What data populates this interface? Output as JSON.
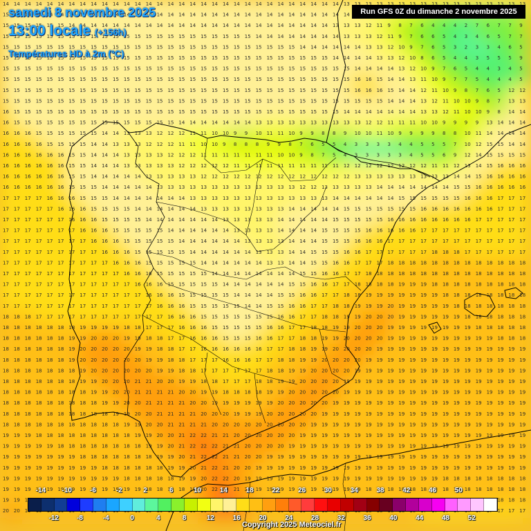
{
  "header": {
    "date": "samedi 8 novembre 2025",
    "time": "13:00 locale",
    "lead": "(+156h)",
    "parameter": "Températures HD à 2m (°C)",
    "run": "Run GFS 0Z du dimanche 2 novembre 2025"
  },
  "footer": {
    "copyright": "Copyright 2025 Meteociel.fr"
  },
  "legend": {
    "colors": [
      "#0a1e4a",
      "#0d2f6e",
      "#113d94",
      "#0000dc",
      "#1e3cff",
      "#1f7ef0",
      "#1aa6ff",
      "#3ed0ff",
      "#60eddc",
      "#5cf79c",
      "#52f060",
      "#8af02c",
      "#c8f000",
      "#f2ff12",
      "#fff56a",
      "#fff096",
      "#ffdd18",
      "#ffbf14",
      "#ff9f10",
      "#ff7f0a",
      "#ff5a2a",
      "#ff3c3c",
      "#ff1010",
      "#e80000",
      "#c00000",
      "#a20014",
      "#860000",
      "#680020",
      "#8a006a",
      "#b2009c",
      "#d800cc",
      "#f600f2",
      "#ff60ff",
      "#ff9aff",
      "#ffc6ff",
      "#ffffff"
    ],
    "top_labels": [
      "-14",
      "-10",
      "-6",
      "-2",
      "2",
      "6",
      "10",
      "14",
      "18",
      "22",
      "26",
      "30",
      "34",
      "38",
      "42",
      "46",
      "50"
    ],
    "bottom_labels": [
      "-12",
      "-8",
      "-4",
      "0",
      "4",
      "8",
      "12",
      "16",
      "20",
      "24",
      "28",
      "32",
      "36",
      "40",
      "44",
      "48",
      "52"
    ]
  },
  "map": {
    "region": "Iberian Peninsula",
    "grid_values": [
      "14 14 14 14 14 14 14 14 14 14 14 14 14 14 14 14 14 14 14 14 14 14 14 14 14 14 14 14 14 14 14 13 13 13 13 13 13 13 13 13 13 13 13 13 13 13 13 13",
      "15 15 14 14 14 14 14 14 14 14 14 14 14 14 14 14 14 14 14 14 14 14 14 14 14 14 14 14 14 14 14 14 14 14 13 12 11 10 9 7 6 5 4 4 4 4 5 6",
      "15 15 15 15 15 15 14 14 14 14 14 14 14 14 14 14 14 14 14 14 14 14 14 14 14 14 14 14 14 14 13 13 13 12 11 9 8 7 6 4 4 4 2 7 6 7 7 9",
      "15 15 15 15 15 15 15 15 15 15 15 15 15 15 15 15 15 15 15 15 15 15 15 14 14 14 14 14 14 14 14 13 13 13 12 11 9 7 6 6 5 4 3 4 6 5 7 7",
      "15 15 15 15 15 15 15 15 15 15 15 15 15 15 15 15 15 15 15 15 15 15 15 15 15 15 15 14 14 14 14 14 14 13 13 12 10 9 7 6 5 3 2 3 3 4 6 5",
      "15 15 15 15 15 15 15 15 15 15 15 15 15 15 15 15 15 15 15 15 15 15 15 15 15 15 15 15 15 15 14 14 14 14 13 13 12 10 8 6 5 4 4 3 5 5 5 9",
      "15 15 15 15 15 15 15 15 15 15 15 15 15 15 15 15 15 15 15 15 15 15 15 15 15 15 15 15 15 15 15 15 14 14 14 14 13 12 10 9 7 6 5 4 4 3 4 5",
      "15 15 15 15 15 15 15 15 15 15 15 15 15 15 15 15 15 15 15 15 15 15 15 15 15 15 15 15 15 15 15 15 16 16 15 14 14 13 11 10 9 7 7 5 4 4 4 5",
      "15 15 15 15 15 15 15 15 15 15 15 15 15 15 15 15 15 15 15 15 15 15 15 15 15 15 15 15 15 15 15 15 16 16 16 15 14 14 12 11 10 9 8 7 6 5 12 12",
      "15 15 15 15 15 15 15 15 15 15 15 15 15 15 15 15 15 15 15 15 15 15 15 15 15 15 15 15 15 15 15 15 15 15 15 14 14 14 13 12 11 10 10 9 8 7 13 13",
      "16 15 15 15 15 15 15 15 15 15 15 15 15 15 15 15 15 15 15 15 15 15 15 15 15 15 15 15 15 15 15 14 14 14 14 14 14 14 13 13 12 11 10 10 9 8 14 14",
      "16 15 15 15 15 15 15 15 15 15 15 15 15 15 15 15 14 14 14 14 14 14 14 13 13 13 13 13 13 13 13 13 13 12 12 11 11 11 10 10 9 9 9 9 13 14 14 14",
      "16 16 16 15 15 15 15 15 15 14 14 13 13 13 12 12 12 11 11 10 10 9 9 10 11 11 10 9 9 8 8 9 10 10 11 10 9 9 9 9 8 8 10 11 14 14 14 14",
      "16 16 16 16 15 15 15 15 14 14 13 13 13 12 12 12 11 11 10 10 9 8 8 8 9 9 8 7 6 5 5 4 3 3 3 3 4 4 5 5 5 7 10 12 15 15 14 14",
      "16 16 16 16 16 16 15 15 14 14 14 13 13 13 13 12 12 12 11 11 11 11 11 11 11 10 10 9 8 7 5 4 3 3 3 3 3 4 5 5 6 9 12 14 15 15 15 15",
      "16 16 16 16 16 16 15 15 14 14 14 13 13 13 13 13 12 12 12 12 12 11 11 11 11 11 11 11 11 11 11 12 12 12 12 12 12 12 12 11 11 12 13 14 15 16 16 16",
      "16 16 16 16 16 16 15 15 14 14 14 14 14 13 13 13 13 13 12 12 12 12 12 12 12 12 12 12 12 12 12 12 13 13 13 13 13 13 13 13 13 14 14 15 16 16 16 16",
      "16 16 16 16 16 16 15 15 15 14 14 14 14 14 13 13 13 13 13 13 13 13 13 13 13 13 13 12 12 13 13 13 13 13 14 14 14 14 14 14 14 15 15 16 16 16 16 16",
      "17 17 17 17 16 16 16 15 15 15 14 14 14 14 14 14 14 13 13 13 13 13 13 13 13 13 13 13 13 13 14 14 14 14 14 14 15 15 15 15 15 15 16 16 16 17 17 17",
      "17 17 17 17 17 16 16 16 15 15 15 15 14 14 14 14 14 14 13 13 13 13 13 13 13 13 14 14 14 14 14 15 15 15 15 15 15 15 16 16 16 16 16 16 16 17 17 17",
      "17 17 17 17 17 17 16 16 16 15 15 15 15 14 14 14 14 14 14 14 13 13 13 13 13 14 14 14 14 14 15 15 15 15 15 16 16 16 16 16 16 16 16 17 17 17 17 17",
      "17 17 17 17 17 17 17 16 16 16 15 15 15 15 15 14 14 14 14 14 14 13 13 13 13 14 14 14 14 15 15 15 15 16 16 16 16 16 17 17 17 17 17 17 17 17 17 17",
      "17 17 17 17 17 17 17 17 16 16 16 15 15 15 15 15 14 14 14 14 14 14 13 13 13 13 14 14 14 15 15 15 16 16 16 17 17 17 17 17 17 17 17 17 17 17 17 17",
      "17 17 17 17 17 17 17 17 17 16 16 16 15 15 15 15 15 14 14 14 14 14 14 13 13 13 14 14 15 15 15 16 16 17 17 17 17 17 17 18 18 18 17 17 17 17 17 17",
      "17 17 17 17 17 17 17 17 17 17 16 16 16 15 15 15 15 15 14 14 14 14 14 14 13 13 14 14 15 15 16 16 17 17 17 18 18 18 18 18 18 18 18 18 18 18 18 18",
      "17 17 17 17 17 17 17 17 17 17 17 16 16 16 15 15 15 15 15 14 14 14 14 14 14 14 14 15 15 16 16 17 17 18 18 18 18 18 18 18 18 18 18 18 18 18 18 18",
      "17 17 17 17 17 17 17 17 17 17 17 17 16 16 16 15 15 15 15 15 14 14 14 14 14 14 15 15 16 16 17 17 18 18 18 18 19 19 19 18 18 18 18 18 18 18 18 18",
      "17 17 17 17 17 17 17 17 17 17 17 17 17 16 16 16 15 15 15 15 15 14 14 14 14 15 15 16 16 17 17 18 18 19 19 19 19 19 19 19 18 18 18 18 18 18 18 18",
      "17 17 17 17 17 17 17 17 17 17 17 17 17 17 16 16 16 15 15 15 15 15 14 14 15 15 16 16 17 17 18 18 19 19 19 20 19 19 19 19 19 18 18 18 18 18 18 18",
      "18 18 18 17 17 17 17 17 17 17 17 17 17 17 17 16 16 16 15 15 15 15 15 15 15 16 16 17 17 18 18 19 19 20 20 20 19 19 19 19 19 19 18 18 18 18 18 18",
      "18 18 18 18 18 18 18 19 19 19 19 18 18 17 17 17 16 16 16 15 15 15 15 15 16 16 17 17 18 18 19 19 20 20 20 19 19 19 19 19 19 19 19 18 18 18 18 18",
      "18 18 18 18 18 18 19 19 20 20 20 19 19 18 18 17 17 16 16 16 15 15 15 16 16 17 17 18 18 19 19 20 20 20 20 19 19 19 19 19 19 19 19 19 19 18 18 18",
      "18 18 18 18 18 18 19 20 20 20 20 20 19 19 18 18 17 17 16 16 16 16 16 16 17 17 18 18 19 19 20 20 20 20 19 19 19 19 19 19 19 19 19 19 19 19 19 19",
      "18 18 18 18 18 18 19 20 20 20 20 20 20 19 19 18 18 17 17 17 16 16 16 17 17 18 18 19 19 20 20 20 20 19 19 19 19 19 19 19 19 19 19 19 19 19 19 19",
      "18 18 18 18 18 18 18 19 20 20 20 20 20 20 19 19 18 18 17 17 17 17 17 17 18 18 19 19 20 20 20 20 19 19 19 19 19 19 19 19 19 19 19 19 19 19 19 19",
      "18 18 18 18 18 18 18 19 19 20 20 20 21 21 20 20 19 19 18 18 17 17 17 18 18 19 19 20 20 20 20 19 19 19 19 19 19 19 19 19 19 19 19 19 19 19 19 19",
      "18 18 18 18 18 18 18 18 19 19 20 20 21 21 21 21 20 20 19 19 18 18 18 18 19 19 20 20 20 20 20 19 19 19 19 19 19 19 19 19 19 19 19 19 19 19 19 19",
      "18 18 18 18 18 18 18 18 18 19 19 20 20 21 21 21 21 20 20 19 19 19 19 19 19 20 20 20 20 20 19 19 19 19 19 19 19 19 19 19 19 19 19 19 19 19 19 19",
      "18 18 18 18 18 18 18 18 18 18 19 19 20 20 21 21 21 21 20 20 20 19 19 19 20 20 20 20 20 19 19 19 19 19 19 19 19 19 19 19 19 19 19 19 19 19 19 19",
      "18 18 18 18 18 18 18 18 18 18 18 19 19 20 20 21 21 21 21 20 20 20 20 20 20 20 20 20 19 19 19 19 19 19 19 19 19 19 19 19 19 19 19 19 19 19 19 19",
      "19 19 19 18 18 18 18 18 18 18 18 18 19 19 20 20 21 22 22 21 21 20 20 20 20 20 20 19 19 19 19 19 19 19 19 19 19 19 19 19 19 19 19 19 19 19 19 19",
      "19 19 19 19 19 18 18 18 18 18 18 18 18 19 19 20 21 22 22 22 21 21 20 20 20 20 19 19 19 19 19 19 19 19 19 19 19 19 19 19 19 19 19 19 19 19 19 19",
      "19 19 19 19 19 19 19 18 18 18 18 18 18 18 19 19 20 21 22 22 21 21 20 20 19 19 19 19 19 19 19 19 19 19 19 19 19 19 19 19 19 19 19 19 19 19 19 19",
      "19 19 19 19 19 19 19 19 19 18 18 18 18 18 18 19 19 20 21 22 21 20 20 19 19 19 19 19 19 19 19 19 19 19 19 19 19 19 19 19 19 19 19 19 19 19 19 19",
      "19 19 19 19 19 19 19 19 19 19 19 18 18 18 18 18 19 19 20 22 22 20 19 19 19 19 19 19 19 19 19 19 19 19 19 19 19 19 19 19 18 18 18 18 18 18 18 18",
      "19 19 19 19 19 19 19 19 19 19 19 19 19 18 18 18 18 19 20 22 23 21 20 19 19 19 19 19 19 19 19 19 19 18 18 18 18 18 18 18 18 18 18 18 18 18 18 18",
      "19 19 19 19 19 19 19 19 19 19 19 19 19 19 19 18 18 19 20 23 24 22 20 19 19 19 19 19 19 19 18 18 18 18 18 18 18 18 18 18 18 18 18 18 18 18 18 18",
      "20 20 19 19 19 19 19 19 19 19 19 19 19 19 19 19 19 19 20 22 23 22 20 19 19 19 19 19 18 18 18 18 18 18 18 18 18 18 17 17 17 17 17 17 17 17 17 17"
    ]
  }
}
